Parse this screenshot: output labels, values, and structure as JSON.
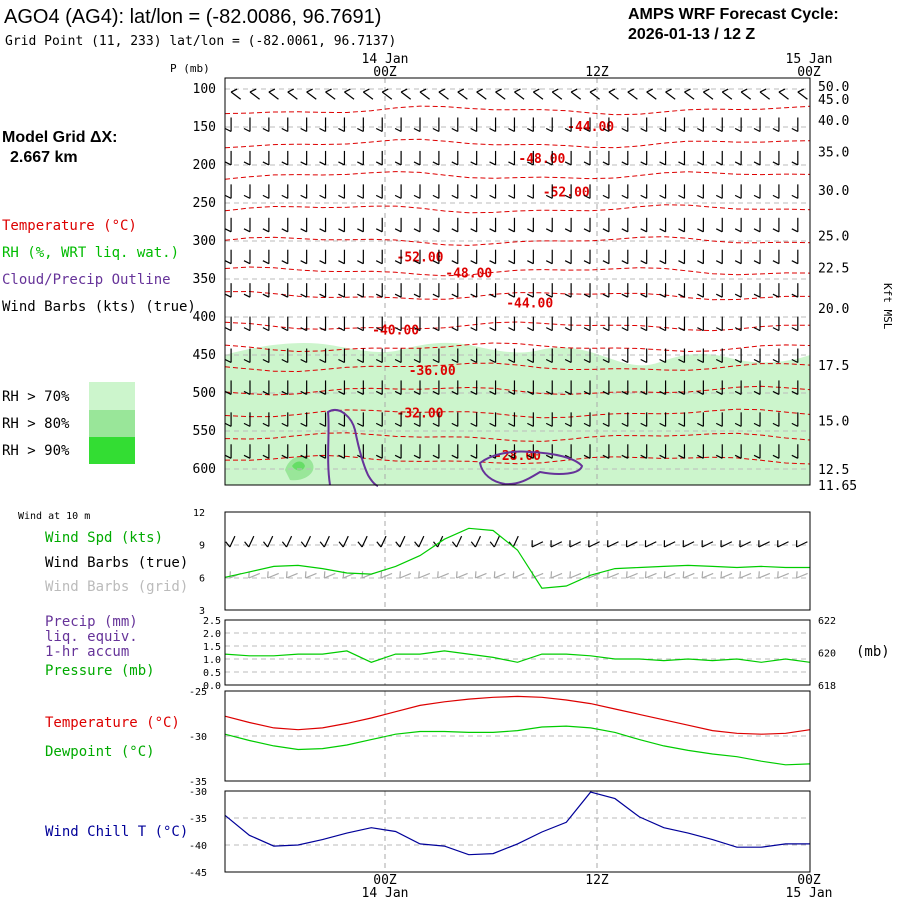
{
  "header": {
    "title": "AGO4 (AG4):  lat/lon = (-82.0086, 96.7691)",
    "grid_point": "Grid Point (11, 233) lat/lon = (-82.0061, 96.7137)",
    "cycle_line1": "AMPS WRF Forecast Cycle:",
    "cycle_line2": "2026-01-13 / 12  Z"
  },
  "legend": {
    "model_grid_line1": "Model Grid ΔX:",
    "model_grid_line2": "2.667 km",
    "temperature": "Temperature (°C)",
    "rh": "RH (%, WRT liq. wat.)",
    "cloud": "Cloud/Precip Outline",
    "wind_barbs": "Wind Barbs (kts) (true)",
    "rh70": "RH > 70%",
    "rh80": "RH > 80%",
    "rh90": "RH > 90%",
    "colors": {
      "rh70": "#ccf5cc",
      "rh80": "#99e699",
      "rh90": "#33dd33",
      "temperature": "#dd0000",
      "rh": "#00bb00",
      "cloud": "#663399",
      "wind_chill": "#000099"
    }
  },
  "time_axis": {
    "top_labels": [
      {
        "date": "14 Jan",
        "hour": "00Z"
      },
      {
        "date": "",
        "hour": "12Z"
      },
      {
        "date": "15 Jan",
        "hour": "00Z"
      }
    ],
    "bottom_labels": [
      {
        "hour": "00Z",
        "date": "14 Jan"
      },
      {
        "hour": "12Z",
        "date": ""
      },
      {
        "hour": "00Z",
        "date": "15 Jan"
      }
    ]
  },
  "chart_data": [
    {
      "type": "line",
      "name": "cross-section",
      "y_label": "P (mb)",
      "right_label": "Kft MSL",
      "pressure_levels": [
        100,
        150,
        200,
        250,
        300,
        350,
        400,
        450,
        500,
        550,
        600
      ],
      "pressure_tick_labels": [
        "100",
        "150",
        "200",
        "250",
        "300",
        "350",
        "400",
        "450",
        "500",
        "550",
        "600"
      ],
      "height_ticks": [
        {
          "p": 96,
          "label": "50.0"
        },
        {
          "p": 113,
          "label": "45.0"
        },
        {
          "p": 141,
          "label": "40.0"
        },
        {
          "p": 182,
          "label": "35.0"
        },
        {
          "p": 233,
          "label": "30.0"
        },
        {
          "p": 293,
          "label": "25.0"
        },
        {
          "p": 335,
          "label": "22.5"
        },
        {
          "p": 388,
          "label": "20.0"
        },
        {
          "p": 463,
          "label": "17.5"
        },
        {
          "p": 536,
          "label": "15.0"
        },
        {
          "p": 600,
          "label": "12.5"
        },
        {
          "p": 620,
          "label": "11.65"
        }
      ],
      "temperature_labels": [
        {
          "label": "-44.00",
          "hour": 30,
          "p": 150
        },
        {
          "label": "-48.00",
          "hour": 26,
          "p": 192
        },
        {
          "label": "-52.00",
          "hour": 28,
          "p": 236
        },
        {
          "label": "-52.00",
          "hour": 16,
          "p": 322
        },
        {
          "label": "-48.00",
          "hour": 20,
          "p": 343
        },
        {
          "label": "-44.00",
          "hour": 25,
          "p": 382
        },
        {
          "label": "-40.00",
          "hour": 14,
          "p": 418
        },
        {
          "label": "-36.00",
          "hour": 17,
          "p": 471
        },
        {
          "label": "-32.00",
          "hour": 16,
          "p": 527
        },
        {
          "label": "-28.00",
          "hour": 24,
          "p": 583
        }
      ]
    },
    {
      "type": "line",
      "name": "wind at 10 m",
      "title": "Wind at 10 m",
      "y_ticks": [
        "12",
        "9",
        "6",
        "3"
      ],
      "ylim": [
        3,
        12
      ],
      "series_labels": {
        "speed": "Wind Spd (kts)",
        "barbs_true": "Wind Barbs (true)",
        "barbs_grid": "Wind Barbs (grid)"
      },
      "hours": [
        0,
        2,
        4,
        6,
        8,
        10,
        12,
        14,
        16,
        18,
        20,
        22,
        24,
        26,
        28,
        30,
        32,
        34,
        36,
        38,
        40,
        42,
        44,
        46,
        48
      ],
      "wind_speed_kts": [
        6.0,
        6.5,
        7.0,
        7.1,
        6.8,
        6.4,
        6.3,
        7.0,
        8.0,
        9.5,
        10.5,
        10.3,
        8.5,
        5.0,
        5.2,
        6.2,
        6.8,
        6.9,
        7.0,
        7.1,
        7.0,
        6.9,
        7.0,
        6.9,
        6.9
      ]
    },
    {
      "type": "line",
      "name": "precip and pressure",
      "left_ticks": [
        "2.5",
        "2.0",
        "1.5",
        "1.0",
        "0.5",
        "0.0"
      ],
      "right_ticks": [
        "622",
        "620",
        "618"
      ],
      "right_unit": "(mb)",
      "series_labels": {
        "precip": "Precip (mm)",
        "precip_sub1": "liq. equiv.",
        "precip_sub2": "1-hr accum",
        "pressure": "Pressure (mb)"
      },
      "precip_mm": [
        0.0,
        0.0,
        0.0,
        0.0,
        0.0,
        0.0,
        0.0,
        0.0,
        0.0,
        0.0,
        0.0,
        0.0,
        0.0,
        0.0,
        0.0,
        0.0,
        0.0,
        0.0,
        0.0,
        0.0,
        0.0,
        0.0,
        0.0,
        0.0,
        0.0
      ],
      "hours": [
        0,
        2,
        4,
        6,
        8,
        10,
        12,
        14,
        16,
        18,
        20,
        22,
        24,
        26,
        28,
        30,
        32,
        34,
        36,
        38,
        40,
        42,
        44,
        46,
        48
      ],
      "pressure_mb": [
        619.9,
        619.8,
        619.8,
        619.9,
        619.9,
        620.1,
        619.4,
        619.9,
        619.9,
        620.1,
        619.9,
        619.7,
        619.4,
        619.9,
        619.9,
        619.8,
        619.6,
        619.6,
        619.5,
        619.6,
        619.5,
        619.6,
        619.4,
        619.6,
        619.4
      ]
    },
    {
      "type": "line",
      "name": "temperature and dewpoint",
      "y_ticks": [
        "-25",
        "-30",
        "-35"
      ],
      "ylim": [
        -35,
        -25
      ],
      "series_labels": {
        "temperature": "Temperature (°C)",
        "dewpoint": "Dewpoint (°C)"
      },
      "hours": [
        0,
        2,
        4,
        6,
        8,
        10,
        12,
        14,
        16,
        18,
        20,
        22,
        24,
        26,
        28,
        30,
        32,
        34,
        36,
        38,
        40,
        42,
        44,
        46,
        48
      ],
      "temperature_c": [
        -27.8,
        -28.5,
        -29.1,
        -29.3,
        -29.1,
        -28.6,
        -28.0,
        -27.3,
        -26.6,
        -26.2,
        -25.9,
        -25.7,
        -25.6,
        -25.7,
        -26.0,
        -26.4,
        -27.0,
        -27.6,
        -28.2,
        -28.8,
        -29.4,
        -29.7,
        -29.8,
        -29.7,
        -29.3
      ],
      "dewpoint_c": [
        -29.8,
        -30.5,
        -31.1,
        -31.5,
        -31.4,
        -31.0,
        -30.4,
        -29.8,
        -29.5,
        -29.5,
        -29.6,
        -29.6,
        -29.4,
        -29.0,
        -28.9,
        -29.1,
        -29.6,
        -30.4,
        -31.1,
        -31.6,
        -32.0,
        -32.3,
        -32.8,
        -33.2,
        -33.1
      ]
    },
    {
      "type": "line",
      "name": "wind chill",
      "y_ticks": [
        "-30",
        "-35",
        "-40",
        "-45"
      ],
      "ylim": [
        -45,
        -30
      ],
      "series_labels": {
        "wind_chill": "Wind Chill T (°C)"
      },
      "hours": [
        0,
        2,
        4,
        6,
        8,
        10,
        12,
        14,
        16,
        18,
        20,
        22,
        24,
        26,
        28,
        30,
        32,
        34,
        36,
        38,
        40,
        42,
        44,
        46,
        48
      ],
      "wind_chill_c": [
        -34.5,
        -38.2,
        -40.2,
        -40.0,
        -39.0,
        -37.8,
        -36.8,
        -37.5,
        -39.8,
        -40.2,
        -41.8,
        -41.6,
        -39.8,
        -37.6,
        -35.8,
        -30.2,
        -31.4,
        -34.8,
        -36.8,
        -37.8,
        -39.0,
        -40.4,
        -40.4,
        -39.8,
        -39.8
      ]
    }
  ]
}
